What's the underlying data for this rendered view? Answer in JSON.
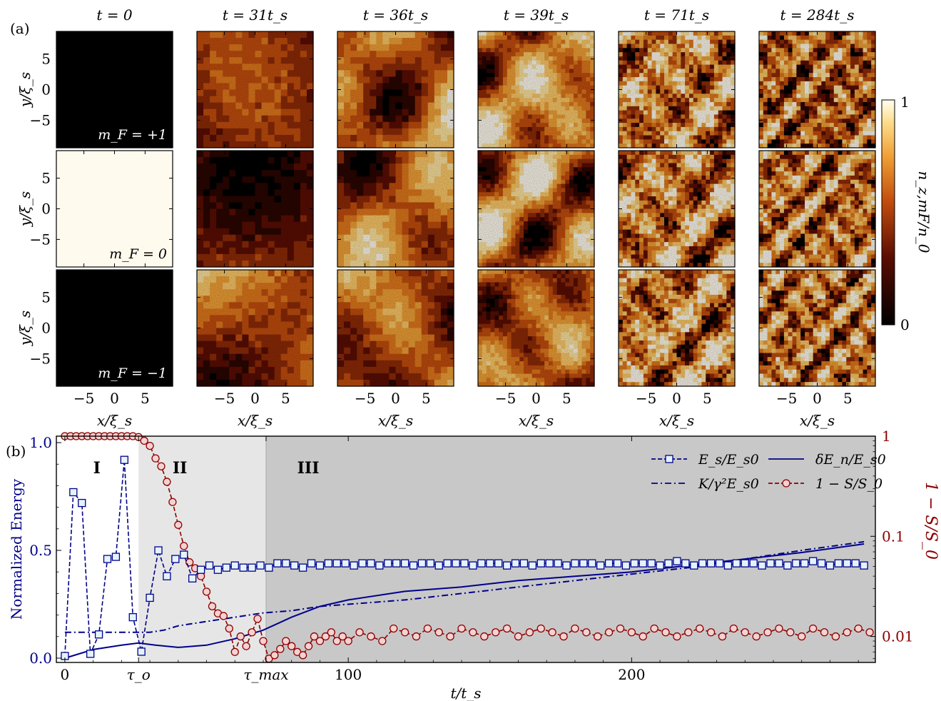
{
  "panel_labels": {
    "a": "(a)",
    "b": "(b)"
  },
  "colors": {
    "blue": "#00008b",
    "red": "#8b0000",
    "square_fill": "#e4f3fb",
    "circle_fill": "#f6d1d1",
    "region1": "#ffffff",
    "region2": "#e6e6e6",
    "region3": "#c8c8c8"
  },
  "heatmap_panels": {
    "time_labels": [
      "t = 0",
      "t = 31t_s",
      "t = 36t_s",
      "t = 39t_s",
      "t = 71t_s",
      "t = 284t_s"
    ],
    "row_labels": [
      "m_F = +1",
      "m_F = 0",
      "m_F = −1"
    ],
    "x_ticks": [
      "−5",
      "0",
      "5"
    ],
    "y_ticks": [
      "5",
      "0",
      "−5"
    ],
    "xlabel": "x/ξ_s",
    "ylabel": "y/ξ_s",
    "colorbar": {
      "label": "n_z,mF/n_0",
      "min_label": "0",
      "max_label": "1"
    }
  },
  "chart_data": {
    "type": "line",
    "xlabel": "t/t_s",
    "ylabel_left": "Normalized Energy",
    "ylabel_right": "1 − S/S_0",
    "xlim": [
      -3,
      286
    ],
    "ylim_left": [
      -0.02,
      1.03
    ],
    "ylim_right_log": [
      0.0055,
      1.0
    ],
    "x_ticks": [
      "0",
      "τ_o",
      "τ_max",
      "100",
      "200"
    ],
    "x_tick_values": [
      0,
      26,
      71,
      100,
      200
    ],
    "y_ticks_left": [
      "0.0",
      "0.5",
      "1.0"
    ],
    "y_ticks_right": [
      "0.01",
      "0.1",
      "1"
    ],
    "regions": [
      {
        "label": "I",
        "x_start": -3,
        "x_end": 26
      },
      {
        "label": "II",
        "x_start": 26,
        "x_end": 71
      },
      {
        "label": "III",
        "x_start": 71,
        "x_end": 286
      }
    ],
    "series": [
      {
        "name": "E_s/E_s0",
        "style": "dashed-square",
        "x": [
          0,
          3,
          6,
          9,
          12,
          15,
          18,
          21,
          24,
          27,
          30,
          33,
          36,
          39,
          42,
          45,
          48,
          51,
          54,
          57,
          60,
          63,
          66,
          69,
          72,
          75,
          78,
          81,
          84,
          87,
          90,
          93,
          96,
          99,
          102,
          105,
          108,
          111,
          114,
          117,
          120,
          123,
          126,
          129,
          132,
          135,
          138,
          141,
          144,
          147,
          150,
          153,
          156,
          159,
          162,
          165,
          168,
          171,
          174,
          177,
          180,
          183,
          186,
          189,
          192,
          195,
          198,
          201,
          204,
          207,
          210,
          213,
          216,
          219,
          222,
          225,
          228,
          231,
          234,
          237,
          240,
          243,
          246,
          249,
          252,
          255,
          258,
          261,
          264,
          267,
          270,
          273,
          276,
          279,
          282
        ],
        "y": [
          0.01,
          0.77,
          0.72,
          0.02,
          0.11,
          0.46,
          0.47,
          0.92,
          0.19,
          0.03,
          0.28,
          0.5,
          0.38,
          0.46,
          0.48,
          0.37,
          0.41,
          0.43,
          0.41,
          0.42,
          0.43,
          0.42,
          0.42,
          0.43,
          0.42,
          0.44,
          0.44,
          0.43,
          0.42,
          0.44,
          0.43,
          0.44,
          0.44,
          0.44,
          0.43,
          0.44,
          0.44,
          0.43,
          0.44,
          0.44,
          0.44,
          0.43,
          0.44,
          0.44,
          0.43,
          0.44,
          0.44,
          0.44,
          0.43,
          0.44,
          0.44,
          0.44,
          0.43,
          0.44,
          0.44,
          0.43,
          0.44,
          0.44,
          0.44,
          0.43,
          0.44,
          0.44,
          0.44,
          0.43,
          0.44,
          0.44,
          0.43,
          0.44,
          0.44,
          0.44,
          0.43,
          0.44,
          0.45,
          0.44,
          0.43,
          0.44,
          0.44,
          0.44,
          0.43,
          0.44,
          0.44,
          0.44,
          0.43,
          0.44,
          0.44,
          0.43,
          0.44,
          0.44,
          0.45,
          0.44,
          0.43,
          0.44,
          0.44,
          0.44,
          0.43
        ]
      },
      {
        "name": "δE_n/E_s0",
        "style": "solid",
        "x": [
          0,
          10,
          20,
          26,
          32,
          40,
          50,
          60,
          70,
          80,
          90,
          100,
          120,
          140,
          160,
          180,
          200,
          220,
          240,
          260,
          282
        ],
        "y": [
          0.0,
          0.04,
          0.06,
          0.07,
          0.06,
          0.05,
          0.06,
          0.09,
          0.13,
          0.19,
          0.24,
          0.27,
          0.31,
          0.33,
          0.36,
          0.38,
          0.4,
          0.43,
          0.46,
          0.49,
          0.53
        ]
      },
      {
        "name": "K/γ²E_s0",
        "style": "dash-dot",
        "x": [
          0,
          10,
          20,
          30,
          35,
          40,
          50,
          60,
          70,
          80,
          90,
          100,
          120,
          140,
          160,
          180,
          200,
          220,
          240,
          260,
          282
        ],
        "y": [
          0.12,
          0.12,
          0.12,
          0.12,
          0.13,
          0.15,
          0.17,
          0.19,
          0.21,
          0.22,
          0.24,
          0.25,
          0.27,
          0.3,
          0.33,
          0.36,
          0.39,
          0.42,
          0.46,
          0.5,
          0.54
        ]
      },
      {
        "name": "1 − S/S_0",
        "style": "dashed-circle",
        "axis": "right",
        "x": [
          0,
          2,
          4,
          6,
          8,
          10,
          12,
          14,
          16,
          18,
          20,
          22,
          24,
          26,
          28,
          30,
          32,
          34,
          36,
          38,
          40,
          42,
          44,
          46,
          48,
          50,
          52,
          54,
          56,
          58,
          60,
          62,
          64,
          66,
          68,
          70,
          72,
          74,
          76,
          78,
          80,
          82,
          84,
          86,
          88,
          90,
          92,
          94,
          96,
          98,
          100,
          104,
          108,
          112,
          116,
          120,
          124,
          128,
          132,
          136,
          140,
          144,
          148,
          152,
          156,
          160,
          164,
          168,
          172,
          176,
          180,
          184,
          188,
          192,
          196,
          200,
          204,
          208,
          212,
          216,
          220,
          224,
          228,
          232,
          236,
          240,
          244,
          248,
          252,
          256,
          260,
          264,
          268,
          272,
          276,
          280,
          284
        ],
        "y": [
          1.0,
          1.0,
          1.0,
          1.0,
          1.0,
          1.0,
          1.0,
          1.0,
          1.0,
          1.0,
          1.0,
          1.0,
          1.0,
          0.98,
          0.9,
          0.8,
          0.6,
          0.5,
          0.35,
          0.22,
          0.13,
          0.08,
          0.055,
          0.048,
          0.04,
          0.028,
          0.02,
          0.017,
          0.016,
          0.012,
          0.007,
          0.01,
          0.008,
          0.011,
          0.015,
          0.009,
          0.006,
          0.0065,
          0.0075,
          0.009,
          0.008,
          0.007,
          0.0065,
          0.008,
          0.01,
          0.009,
          0.01,
          0.011,
          0.009,
          0.01,
          0.009,
          0.011,
          0.01,
          0.009,
          0.012,
          0.011,
          0.01,
          0.012,
          0.011,
          0.01,
          0.012,
          0.011,
          0.01,
          0.011,
          0.012,
          0.01,
          0.011,
          0.012,
          0.011,
          0.01,
          0.012,
          0.011,
          0.01,
          0.011,
          0.012,
          0.011,
          0.01,
          0.012,
          0.011,
          0.01,
          0.011,
          0.012,
          0.011,
          0.01,
          0.012,
          0.011,
          0.01,
          0.011,
          0.012,
          0.011,
          0.01,
          0.012,
          0.011,
          0.01,
          0.011,
          0.012,
          0.011
        ]
      }
    ],
    "legend": {
      "location": "top-right",
      "entries": [
        "E_s/E_s0",
        "δE_n/E_s0",
        "K/γ²E_s0",
        "1 − S/S_0"
      ]
    }
  }
}
